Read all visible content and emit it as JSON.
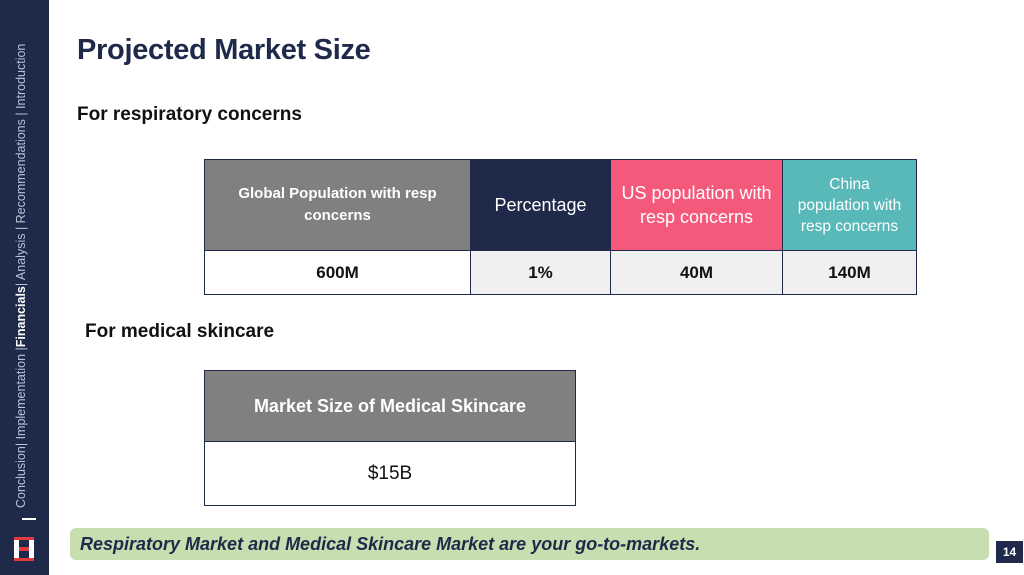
{
  "sidebar": {
    "nav": [
      "Conclusion",
      "| Implementation |",
      "Financials",
      "| Analysis | Recommendations | Introduction"
    ],
    "active": "Financials"
  },
  "title": "Projected Market Size",
  "respiratory": {
    "heading": "For respiratory concerns",
    "headers": [
      "Global Population with resp concerns",
      "Percentage",
      "US population with resp concerns",
      "China population with resp concerns"
    ],
    "values": [
      "600M",
      "1%",
      "40M",
      "140M"
    ],
    "header_colors": [
      "#808080",
      "#1f2a4a",
      "#f4587a",
      "#58b9b8"
    ]
  },
  "skincare": {
    "heading": "For medical skincare",
    "header": "Market Size of Medical Skincare",
    "value": "$15B"
  },
  "banner": "Respiratory Market and Medical Skincare Market are your go-to-markets.",
  "page_number": "14"
}
